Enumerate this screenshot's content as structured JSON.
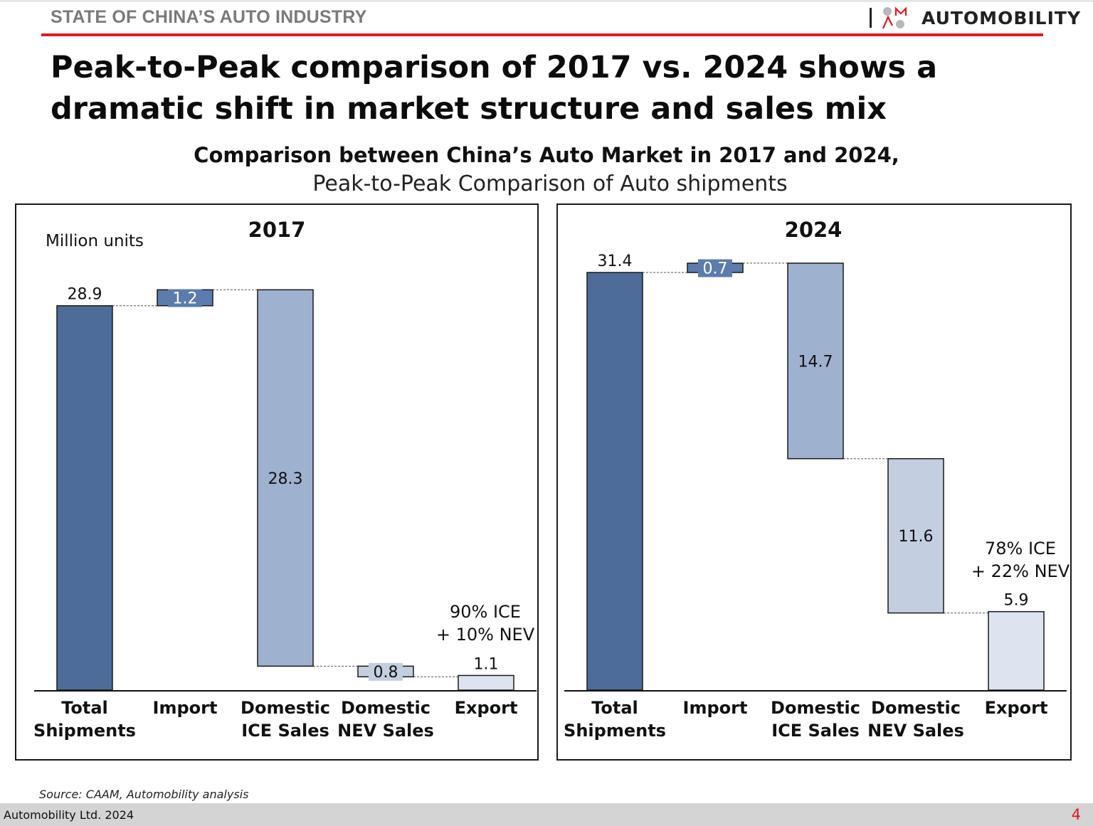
{
  "header": {
    "section_title": "STATE OF CHINA’S AUTO INDUSTRY",
    "logo_text": "AUTOMOBILITY"
  },
  "headline": "Peak-to-Peak comparison of 2017 vs. 2024 shows a dramatic shift in market structure and sales mix",
  "chart_title": "Comparison between China’s Auto Market in 2017 and 2024,",
  "chart_subtitle": "Peak-to-Peak Comparison of Auto shipments",
  "unit_label": "Million units",
  "colors": {
    "total": "#4d6c9a",
    "import": "#5b7cad",
    "ice": "#9eb1cf",
    "nev": "#c3cee1",
    "export": "#dde4ef",
    "stroke": "#1a1a1a"
  },
  "chart_data": [
    {
      "type": "bar",
      "subtype": "waterfall",
      "title": "2017",
      "categories": [
        [
          "Total",
          "Shipments"
        ],
        [
          "Import"
        ],
        [
          "Domestic",
          "ICE Sales"
        ],
        [
          "Domestic",
          "NEV Sales"
        ],
        [
          "Export"
        ]
      ],
      "values": [
        28.9,
        1.2,
        28.3,
        0.8,
        1.1
      ],
      "value_labels": [
        "28.9",
        "1.2",
        "28.3",
        "0.8",
        "1.1"
      ],
      "annotation": [
        "90% ICE",
        "+ 10% NEV"
      ],
      "ylim": [
        0,
        31.4
      ]
    },
    {
      "type": "bar",
      "subtype": "waterfall",
      "title": "2024",
      "categories": [
        [
          "Total",
          "Shipments"
        ],
        [
          "Import"
        ],
        [
          "Domestic",
          "ICE Sales"
        ],
        [
          "Domestic",
          "NEV Sales"
        ],
        [
          "Export"
        ]
      ],
      "values": [
        31.4,
        0.7,
        14.7,
        11.6,
        5.9
      ],
      "value_labels": [
        "31.4",
        "0.7",
        "14.7",
        "11.6",
        "5.9"
      ],
      "annotation": [
        "78% ICE",
        "+ 22% NEV"
      ],
      "ylim": [
        0,
        31.4
      ]
    }
  ],
  "source": "Source: CAAM, Automobility analysis",
  "footer": {
    "company": "Automobility Ltd. 2024",
    "page_number": "4"
  }
}
